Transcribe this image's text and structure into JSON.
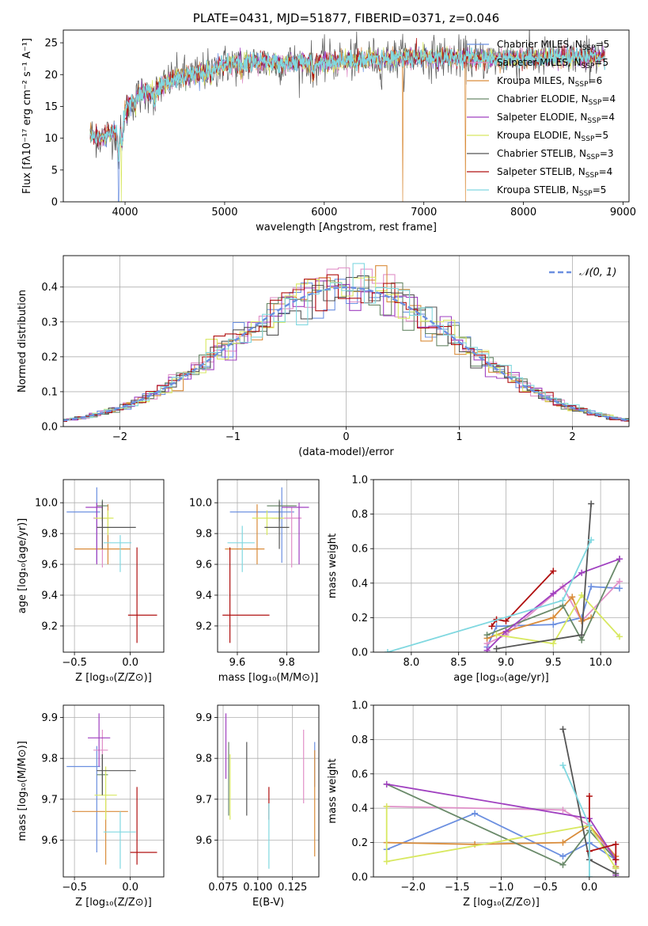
{
  "colors": {
    "series": [
      "#6b8fe0",
      "#e090c8",
      "#d98c3a",
      "#6a8a6a",
      "#a040c0",
      "#d8e860",
      "#555555",
      "#b01010",
      "#80d8e0"
    ],
    "norm": "#6b8fe0",
    "grid": "#b0b0b0"
  },
  "chart_data": [
    {
      "id": "spectrum",
      "type": "line",
      "title": "PLATE=0431, MJD=51877, FIBERID=0371, z=0.046",
      "xlabel": "wavelength [Angstrom, rest frame]",
      "ylabel": "Flux [fλ10⁻¹⁷ erg cm⁻² s⁻¹ A⁻¹]",
      "xlim": [
        3380,
        9060
      ],
      "ylim": [
        0,
        27
      ],
      "xticks": [
        4000,
        5000,
        6000,
        7000,
        8000,
        9000
      ],
      "yticks": [
        0,
        5,
        10,
        15,
        20,
        25
      ],
      "grid": false,
      "legend_position": "top-right",
      "continuum": [
        [
          3650,
          10.5
        ],
        [
          3750,
          10
        ],
        [
          3900,
          11
        ],
        [
          3950,
          11.5
        ],
        [
          4000,
          14
        ],
        [
          4100,
          16.5
        ],
        [
          4300,
          17.5
        ],
        [
          4500,
          19.5
        ],
        [
          4700,
          20
        ],
        [
          5000,
          21.5
        ],
        [
          5200,
          22
        ],
        [
          5500,
          21.8
        ],
        [
          6000,
          22
        ],
        [
          6500,
          22.5
        ],
        [
          7000,
          22.8
        ],
        [
          7500,
          22.5
        ],
        [
          8000,
          22.5
        ],
        [
          8500,
          22.8
        ],
        [
          8800,
          22.8
        ]
      ],
      "features": [
        {
          "series": "Chabrier MILES",
          "x": 3935,
          "depth": 0
        },
        {
          "series": "Kroupa ELODIE",
          "x": 3960,
          "depth": 0
        },
        {
          "series": "Kroupa MILES",
          "x": 6790,
          "depth": 0
        },
        {
          "series": "Kroupa MILES",
          "x": 7420,
          "depth": 0
        }
      ],
      "legend": [
        {
          "name": "Chabrier MILES",
          "nssp": "5"
        },
        {
          "name": "Salpeter MILES",
          "nssp": "5"
        },
        {
          "name": "Kroupa MILES",
          "nssp": "6"
        },
        {
          "name": "Chabrier ELODIE",
          "nssp": "4"
        },
        {
          "name": "Salpeter ELODIE",
          "nssp": "4"
        },
        {
          "name": "Kroupa ELODIE",
          "nssp": "5"
        },
        {
          "name": "Chabrier STELIB",
          "nssp": "3"
        },
        {
          "name": "Salpeter STELIB",
          "nssp": "4"
        },
        {
          "name": "Kroupa STELIB",
          "nssp": "5"
        }
      ]
    },
    {
      "id": "residuals",
      "type": "histogram",
      "xlabel": "(data-model)/error",
      "ylabel": "Normed distribution",
      "xlim": [
        -2.5,
        2.5
      ],
      "ylim": [
        0,
        0.49
      ],
      "xticks": [
        -2,
        -1,
        0,
        1,
        2
      ],
      "yticks": [
        0.0,
        0.1,
        0.2,
        0.3,
        0.4
      ],
      "grid": true,
      "bin_width": 0.1,
      "legend_position": "top-right",
      "normal_label": "𝒩(0, 1)"
    },
    {
      "id": "age_vs_Z",
      "type": "errorbar",
      "xlabel": "Z [log₁₀(Z/Z⊙)]",
      "ylabel": "age  [log₁₀(age/yr)]",
      "xlim": [
        -0.6,
        0.3
      ],
      "ylim": [
        9.03,
        10.15
      ],
      "xticks": [
        -0.5,
        0.0
      ],
      "yticks": [
        9.2,
        9.4,
        9.6,
        9.8,
        10.0
      ],
      "grid": true,
      "points": [
        {
          "x": -0.3,
          "y": 9.94,
          "xerr": [
            0.27,
            0.03
          ],
          "yerr": [
            0.33,
            0.16
          ]
        },
        {
          "x": -0.25,
          "y": 9.9,
          "xerr": [
            0.08,
            0.05
          ],
          "yerr": [
            0.32,
            0.07
          ]
        },
        {
          "x": -0.2,
          "y": 9.7,
          "xerr": [
            0.3,
            0.2
          ],
          "yerr": [
            0.1,
            0.29
          ]
        },
        {
          "x": -0.25,
          "y": 9.98,
          "xerr": [
            0.05,
            0.05
          ],
          "yerr": [
            0.1,
            0.04
          ]
        },
        {
          "x": -0.3,
          "y": 9.97,
          "xerr": [
            0.1,
            0.05
          ],
          "yerr": [
            0.37,
            0.03
          ]
        },
        {
          "x": -0.2,
          "y": 9.9,
          "xerr": [
            0.12,
            0.05
          ],
          "yerr": [
            0.11,
            0.05
          ]
        },
        {
          "x": -0.25,
          "y": 9.84,
          "xerr": [
            0.05,
            0.3
          ],
          "yerr": [
            0.14,
            0.17
          ]
        },
        {
          "x": 0.06,
          "y": 9.27,
          "xerr": [
            0.08,
            0.18
          ],
          "yerr": [
            0.18,
            0.44
          ]
        },
        {
          "x": -0.09,
          "y": 9.74,
          "xerr": [
            0.15,
            0.1
          ],
          "yerr": [
            0.19,
            0.05
          ]
        }
      ]
    },
    {
      "id": "age_vs_mass",
      "type": "errorbar",
      "xlabel": "mass [log₁₀(M/M⊙)]",
      "ylabel": "",
      "xlim": [
        9.52,
        9.93
      ],
      "ylim": [
        9.03,
        10.15
      ],
      "xticks": [
        9.6,
        9.8
      ],
      "yticks": [
        9.2,
        9.4,
        9.6,
        9.8,
        10.0
      ],
      "grid": true,
      "points": [
        {
          "x": 9.78,
          "y": 9.94,
          "xerr": [
            0.21,
            0.05
          ],
          "yerr": [
            0.33,
            0.16
          ]
        },
        {
          "x": 9.82,
          "y": 9.9,
          "xerr": [
            0.08,
            0.04
          ],
          "yerr": [
            0.32,
            0.07
          ]
        },
        {
          "x": 9.68,
          "y": 9.7,
          "xerr": [
            0.13,
            0.03
          ],
          "yerr": [
            0.1,
            0.29
          ]
        },
        {
          "x": 9.77,
          "y": 9.98,
          "xerr": [
            0.05,
            0.07
          ],
          "yerr": [
            0.1,
            0.04
          ]
        },
        {
          "x": 9.85,
          "y": 9.97,
          "xerr": [
            0.07,
            0.04
          ],
          "yerr": [
            0.37,
            0.03
          ]
        },
        {
          "x": 9.72,
          "y": 9.9,
          "xerr": [
            0.06,
            0.07
          ],
          "yerr": [
            0.11,
            0.05
          ]
        },
        {
          "x": 9.77,
          "y": 9.84,
          "xerr": [
            0.06,
            0.04
          ],
          "yerr": [
            0.14,
            0.17
          ]
        },
        {
          "x": 9.57,
          "y": 9.27,
          "xerr": [
            0.03,
            0.16
          ],
          "yerr": [
            0.18,
            0.44
          ]
        },
        {
          "x": 9.62,
          "y": 9.74,
          "xerr": [
            0.06,
            0.05
          ],
          "yerr": [
            0.19,
            0.11
          ]
        }
      ]
    },
    {
      "id": "weight_vs_age",
      "type": "line",
      "xlabel": "age  [log₁₀(age/yr)]",
      "ylabel": "mass weight",
      "xlim": [
        7.6,
        10.3
      ],
      "ylim": [
        0,
        1.0
      ],
      "xticks": [
        8.0,
        8.5,
        9.0,
        9.5,
        10.0
      ],
      "yticks": [
        0.0,
        0.2,
        0.4,
        0.6,
        0.8,
        1.0
      ],
      "grid": true,
      "series": [
        {
          "x": [
            8.8,
            8.9,
            9.5,
            9.8,
            9.9,
            10.2
          ],
          "y": [
            0.03,
            0.15,
            0.16,
            0.2,
            0.38,
            0.37
          ]
        },
        {
          "x": [
            8.8,
            9.0,
            9.6,
            9.8,
            10.2
          ],
          "y": [
            0.05,
            0.1,
            0.38,
            0.18,
            0.41
          ]
        },
        {
          "x": [
            8.8,
            9.0,
            9.5,
            9.7,
            9.8,
            9.9
          ],
          "y": [
            0.08,
            0.12,
            0.2,
            0.32,
            0.18,
            0.2
          ]
        },
        {
          "x": [
            8.8,
            9.6,
            9.8,
            10.2
          ],
          "y": [
            0.1,
            0.27,
            0.07,
            0.54
          ]
        },
        {
          "x": [
            8.8,
            9.0,
            9.5,
            9.8,
            10.2
          ],
          "y": [
            0.01,
            0.12,
            0.34,
            0.46,
            0.54
          ]
        },
        {
          "x": [
            8.9,
            9.5,
            9.8,
            10.2
          ],
          "y": [
            0.1,
            0.05,
            0.33,
            0.09
          ]
        },
        {
          "x": [
            8.9,
            9.8,
            9.9
          ],
          "y": [
            0.02,
            0.1,
            0.86
          ]
        },
        {
          "x": [
            8.85,
            8.9,
            9.0,
            9.5
          ],
          "y": [
            0.15,
            0.19,
            0.18,
            0.47
          ]
        },
        {
          "x": [
            7.75,
            9.6,
            9.9
          ],
          "y": [
            0.0,
            0.3,
            0.65
          ]
        }
      ]
    },
    {
      "id": "mass_vs_Z",
      "type": "errorbar",
      "xlabel": "Z [log₁₀(Z/Z⊙)]",
      "ylabel": "mass [log₁₀(M/M⊙)]",
      "xlim": [
        -0.6,
        0.3
      ],
      "ylim": [
        9.51,
        9.93
      ],
      "xticks": [
        -0.5,
        0.0
      ],
      "yticks": [
        9.6,
        9.7,
        9.8,
        9.9
      ],
      "grid": true,
      "points": [
        {
          "x": -0.3,
          "y": 9.78,
          "xerr": [
            0.27,
            0.03
          ],
          "yerr": [
            0.21,
            0.05
          ]
        },
        {
          "x": -0.25,
          "y": 9.82,
          "xerr": [
            0.08,
            0.05
          ],
          "yerr": [
            0.08,
            0.05
          ]
        },
        {
          "x": -0.22,
          "y": 9.67,
          "xerr": [
            0.3,
            0.2
          ],
          "yerr": [
            0.13,
            0.03
          ]
        },
        {
          "x": -0.25,
          "y": 9.76,
          "xerr": [
            0.05,
            0.05
          ],
          "yerr": [
            0.05,
            0.05
          ]
        },
        {
          "x": -0.28,
          "y": 9.85,
          "xerr": [
            0.1,
            0.1
          ],
          "yerr": [
            0.07,
            0.06
          ]
        },
        {
          "x": -0.22,
          "y": 9.71,
          "xerr": [
            0.1,
            0.1
          ],
          "yerr": [
            0.06,
            0.07
          ]
        },
        {
          "x": -0.25,
          "y": 9.77,
          "xerr": [
            0.05,
            0.3
          ],
          "yerr": [
            0.06,
            0.04
          ]
        },
        {
          "x": 0.06,
          "y": 9.57,
          "xerr": [
            0.06,
            0.18
          ],
          "yerr": [
            0.03,
            0.16
          ]
        },
        {
          "x": -0.09,
          "y": 9.62,
          "xerr": [
            0.15,
            0.14
          ],
          "yerr": [
            0.09,
            0.05
          ]
        }
      ]
    },
    {
      "id": "mass_vs_EBV",
      "type": "errorbar",
      "xlabel": "E(B-V)",
      "ylabel": "",
      "xlim": [
        0.071,
        0.144
      ],
      "ylim": [
        9.51,
        9.93
      ],
      "xticks": [
        0.075,
        0.1,
        0.125
      ],
      "xticklabels": [
        "0.075",
        "0.100",
        "0.125"
      ],
      "yticks": [
        9.6,
        9.7,
        9.8,
        9.9
      ],
      "grid": true,
      "points": [
        {
          "x": 0.141,
          "y": 9.78,
          "yerr": [
            0.05,
            0.06
          ]
        },
        {
          "x": 0.133,
          "y": 9.78,
          "yerr": [
            0.09,
            0.09
          ]
        },
        {
          "x": 0.141,
          "y": 9.69,
          "yerr": [
            0.13,
            0.13
          ]
        },
        {
          "x": 0.079,
          "y": 9.75,
          "yerr": [
            0.09,
            0.09
          ]
        },
        {
          "x": 0.077,
          "y": 9.83,
          "yerr": [
            0.08,
            0.08
          ]
        },
        {
          "x": 0.08,
          "y": 9.73,
          "yerr": [
            0.08,
            0.08
          ]
        },
        {
          "x": 0.092,
          "y": 9.75,
          "yerr": [
            0.09,
            0.09
          ]
        },
        {
          "x": 0.108,
          "y": 9.69,
          "yerr": [
            0.04,
            0.04
          ]
        },
        {
          "x": 0.108,
          "y": 9.61,
          "yerr": [
            0.08,
            0.08
          ]
        }
      ]
    },
    {
      "id": "weight_vs_Z",
      "type": "line",
      "xlabel": "Z [log₁₀(Z/Z⊙)]",
      "ylabel": "mass weight",
      "xlim": [
        -2.45,
        0.45
      ],
      "ylim": [
        0,
        1.0
      ],
      "xticks": [
        -2.0,
        -1.5,
        -1.0,
        -0.5,
        0.0
      ],
      "yticks": [
        0.0,
        0.2,
        0.4,
        0.6,
        0.8,
        1.0
      ],
      "grid": true,
      "series": [
        {
          "x": [
            -2.3,
            -1.3,
            -0.3,
            0.0,
            0.3,
            0.3
          ],
          "y": [
            0.16,
            0.37,
            0.12,
            0.2,
            0.1,
            0.05
          ]
        },
        {
          "x": [
            -2.3,
            -0.3,
            0.0,
            0.3,
            0.3
          ],
          "y": [
            0.41,
            0.39,
            0.3,
            0.1,
            0.05
          ]
        },
        {
          "x": [
            -2.3,
            -1.3,
            -0.3,
            0.0,
            0.3,
            0.3
          ],
          "y": [
            0.2,
            0.19,
            0.2,
            0.3,
            0.12,
            0.06
          ]
        },
        {
          "x": [
            -2.3,
            -0.3,
            0.0,
            0.3
          ],
          "y": [
            0.54,
            0.07,
            0.27,
            0.1
          ]
        },
        {
          "x": [
            -2.3,
            0.0,
            0.3,
            0.3
          ],
          "y": [
            0.54,
            0.34,
            0.1,
            0.01
          ]
        },
        {
          "x": [
            -2.3,
            -2.3,
            0.0,
            0.3
          ],
          "y": [
            0.41,
            0.09,
            0.3,
            0.05
          ]
        },
        {
          "x": [
            -0.3,
            0.0,
            0.3
          ],
          "y": [
            0.86,
            0.1,
            0.02
          ]
        },
        {
          "x": [
            0.0,
            0.0,
            0.3,
            0.3
          ],
          "y": [
            0.47,
            0.15,
            0.19,
            0.1
          ]
        },
        {
          "x": [
            -0.3,
            0.0,
            0.0
          ],
          "y": [
            0.65,
            0.3,
            0.0
          ]
        }
      ]
    }
  ]
}
